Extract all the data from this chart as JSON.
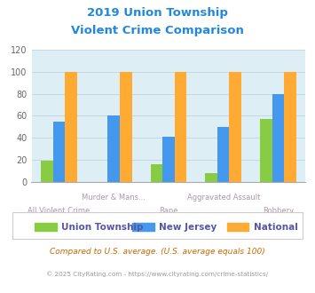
{
  "title_line1": "2019 Union Township",
  "title_line2": "Violent Crime Comparison",
  "title_color": "#2288dd",
  "categories": [
    "All Violent Crime",
    "Murder & Mans...",
    "Rape",
    "Aggravated Assault",
    "Robbery"
  ],
  "union_values": [
    19,
    0,
    16,
    8,
    57
  ],
  "nj_values": [
    55,
    60,
    41,
    50,
    80
  ],
  "national_values": [
    100,
    100,
    100,
    100,
    100
  ],
  "union_color": "#88cc44",
  "nj_color": "#4499ee",
  "national_color": "#ffaa33",
  "bg_color": "#ddeef5",
  "plot_bg": "#ddeef5",
  "ylim": [
    0,
    120
  ],
  "yticks": [
    0,
    20,
    40,
    60,
    80,
    100,
    120
  ],
  "footnote1": "Compared to U.S. average. (U.S. average equals 100)",
  "footnote2": "© 2025 CityRating.com - https://www.cityrating.com/crime-statistics/",
  "footnote1_color": "#cc6600",
  "footnote2_color": "#999999",
  "legend_labels": [
    "Union Township",
    "New Jersey",
    "National"
  ],
  "legend_text_color": "#5555aa",
  "x_label_color": "#aa99aa",
  "upper_label_indices": [
    1,
    3
  ],
  "lower_label_indices": [
    0,
    2,
    4
  ]
}
